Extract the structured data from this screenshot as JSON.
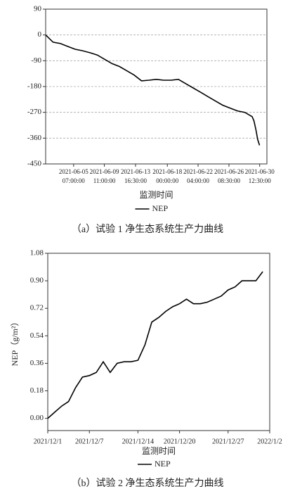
{
  "chart_data": [
    {
      "type": "line",
      "x": [
        "2021-06-01 12:00",
        "2021-06-02 12:00",
        "2021-06-03 12:00",
        "2021-06-04 12:00",
        "2021-06-05 12:00",
        "2021-06-06 12:00",
        "2021-06-07 12:00",
        "2021-06-08 12:00",
        "2021-06-09 12:00",
        "2021-06-10 12:00",
        "2021-06-11 12:00",
        "2021-06-12 12:00",
        "2021-06-13 12:00",
        "2021-06-14 12:00",
        "2021-06-15 12:00",
        "2021-06-16 12:00",
        "2021-06-17 12:00",
        "2021-06-18 12:00",
        "2021-06-19 12:00",
        "2021-06-20 12:00",
        "2021-06-21 12:00",
        "2021-06-22 12:00",
        "2021-06-23 12:00",
        "2021-06-24 12:00",
        "2021-06-25 12:00",
        "2021-06-26 12:00",
        "2021-06-27 12:00",
        "2021-06-28 12:00",
        "2021-06-29 12:00",
        "2021-06-29 18:00",
        "2021-06-30 00:00",
        "2021-06-30 06:00",
        "2021-06-30 12:00"
      ],
      "series": [
        {
          "name": "NEP",
          "color": "#000000",
          "values": [
            0,
            -25,
            -30,
            -40,
            -50,
            -55,
            -62,
            -70,
            -85,
            -100,
            -110,
            -125,
            -140,
            -160,
            -158,
            -155,
            -158,
            -158,
            -155,
            -170,
            -185,
            -200,
            -215,
            -230,
            -245,
            -255,
            -265,
            -270,
            -285,
            -300,
            -330,
            -365,
            -385
          ]
        }
      ],
      "xlim": [
        "2021-06-01 12:00",
        "2021-07-01 12:00"
      ],
      "xticks": [
        {
          "value": "2021-06-05 07:00",
          "label": "2021-06-05 07:00:00"
        },
        {
          "value": "2021-06-09 11:00",
          "label": "2021-06-09 11:00:00"
        },
        {
          "value": "2021-06-13 16:30",
          "label": "2021-06-13 16:30:00"
        },
        {
          "value": "2021-06-18 00:00",
          "label": "2021-06-18 00:00:00"
        },
        {
          "value": "2021-06-22 04:00",
          "label": "2021-06-22 04:00:00"
        },
        {
          "value": "2021-06-26 08:30",
          "label": "2021-06-26 08:30:00"
        },
        {
          "value": "2021-06-30 12:30",
          "label": "2021-06-30 12:30:00"
        }
      ],
      "ylim": [
        -450,
        90
      ],
      "yticks": [
        90,
        0,
        -90,
        -180,
        -270,
        -360,
        -450
      ],
      "grid": true,
      "xlabel": "监测时间",
      "caption": "（a）试验 1 净生态系统生产力曲线"
    },
    {
      "type": "line",
      "x": [
        "2021-12-01",
        "2021-12-02",
        "2021-12-03",
        "2021-12-04",
        "2021-12-05",
        "2021-12-06",
        "2021-12-07",
        "2021-12-08",
        "2021-12-09",
        "2021-12-10",
        "2021-12-11",
        "2021-12-12",
        "2021-12-13",
        "2021-12-14",
        "2021-12-15",
        "2021-12-16",
        "2021-12-17",
        "2021-12-18",
        "2021-12-19",
        "2021-12-20",
        "2021-12-21",
        "2021-12-22",
        "2021-12-23",
        "2021-12-24",
        "2021-12-25",
        "2021-12-26",
        "2021-12-27",
        "2021-12-28",
        "2021-12-29",
        "2021-12-30",
        "2021-12-31",
        "2022-01-01"
      ],
      "series": [
        {
          "name": "NEP",
          "color": "#000000",
          "values": [
            0,
            0.04,
            0.08,
            0.11,
            0.2,
            0.27,
            0.28,
            0.3,
            0.37,
            0.3,
            0.36,
            0.37,
            0.37,
            0.38,
            0.48,
            0.63,
            0.66,
            0.7,
            0.73,
            0.75,
            0.78,
            0.75,
            0.75,
            0.76,
            0.78,
            0.8,
            0.84,
            0.86,
            0.9,
            0.9,
            0.9,
            0.96
          ]
        }
      ],
      "xlim": [
        "2021-12-01",
        "2022-01-02"
      ],
      "xticks": [
        {
          "value": "2021-12-01",
          "label": "2021/12/1"
        },
        {
          "value": "2021-12-07",
          "label": "2021/12/7"
        },
        {
          "value": "2021-12-14",
          "label": "2021/12/14"
        },
        {
          "value": "2021-12-20",
          "label": "2021/12/20"
        },
        {
          "value": "2021-12-27",
          "label": "2021/12/27"
        },
        {
          "value": "2022-01-02",
          "label": "2022/1/2"
        }
      ],
      "ylim": [
        -0.08,
        1.08
      ],
      "yticks": [
        {
          "value": 0,
          "label": "0.00"
        },
        0.18,
        0.36,
        0.54,
        0.72,
        {
          "value": 0.9,
          "label": "0.90"
        },
        1.08
      ],
      "grid": false,
      "ylabel": "NEP（g/m²）",
      "xlabel": "监测时间",
      "caption": "（b）试验 2 净生态系统生产力曲线"
    }
  ]
}
